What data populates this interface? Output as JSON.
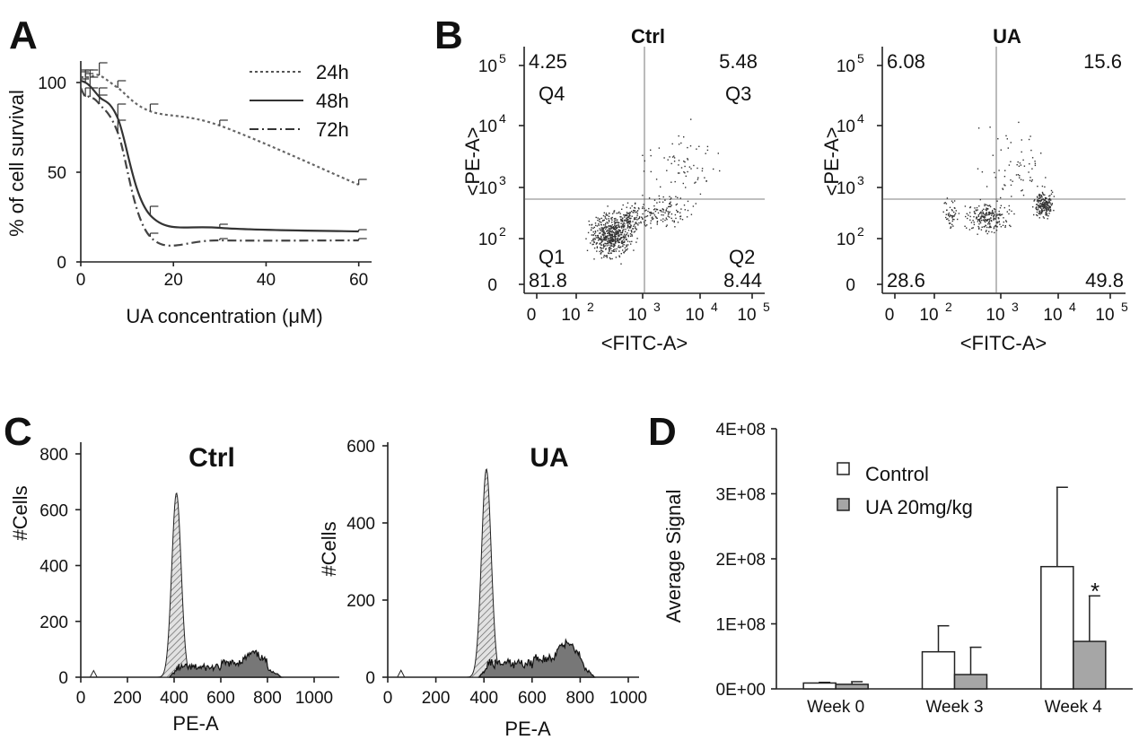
{
  "panels": {
    "A": "A",
    "B": "B",
    "C": "C",
    "D": "D"
  },
  "chart_data": [
    {
      "panel": "A",
      "type": "line",
      "xlabel": "UA concentration (μM)",
      "ylabel": "% of cell survival",
      "xlim": [
        0,
        62
      ],
      "ylim": [
        0,
        112
      ],
      "xticks": [
        "0",
        "20",
        "40",
        "60"
      ],
      "yticks": [
        "0",
        "50",
        "100"
      ],
      "legend_position": "top-right",
      "series": [
        {
          "name": "24h",
          "style": "dotted",
          "x": [
            0,
            1,
            2,
            4,
            8,
            15,
            30,
            60
          ],
          "y": [
            103,
            103,
            103,
            104,
            97,
            84,
            76,
            43
          ],
          "err": [
            4,
            4,
            4,
            7,
            4,
            4,
            3,
            3
          ]
        },
        {
          "name": "48h",
          "style": "solid",
          "x": [
            0,
            1,
            2,
            4,
            8,
            15,
            30,
            60
          ],
          "y": [
            101,
            100,
            98,
            92,
            80,
            26,
            19,
            17
          ],
          "err": [
            5,
            5,
            5,
            5,
            8,
            5,
            2,
            1
          ]
        },
        {
          "name": "72h",
          "style": "dash-dot",
          "x": [
            0,
            1,
            2,
            4,
            8,
            15,
            30,
            60
          ],
          "y": [
            97,
            92,
            92,
            88,
            72,
            14,
            12,
            12
          ],
          "err": [
            5,
            5,
            5,
            5,
            7,
            2,
            1,
            1
          ]
        }
      ]
    },
    {
      "panel": "B",
      "type": "scatter",
      "subplots": [
        {
          "title": "Ctrl",
          "xlabel": "<FITC-A>",
          "ylabel": "<PE-A>",
          "quadrants": {
            "Q4": "4.25",
            "Q3": "5.48",
            "Q1": "81.8",
            "Q2": "8.44"
          },
          "quadrant_names": [
            "Q4",
            "Q3",
            "Q1",
            "Q2"
          ]
        },
        {
          "title": "UA",
          "xlabel": "<FITC-A>",
          "ylabel": "<PE-A>",
          "quadrants": {
            "Q4": "6.08",
            "Q3": "15.6",
            "Q1": "28.6",
            "Q2": "49.8"
          },
          "quadrant_names": []
        }
      ],
      "xticks": [
        "0",
        "10",
        "10",
        "10",
        "10"
      ],
      "xtick_exp": [
        "",
        "2",
        "3",
        "4",
        "5"
      ],
      "yticks": [
        "0",
        "10",
        "10",
        "10",
        "10"
      ],
      "ytick_exp": [
        "",
        "2",
        "3",
        "4",
        "5"
      ]
    },
    {
      "panel": "C",
      "type": "area",
      "subplots": [
        {
          "title": "Ctrl",
          "xlabel": "PE-A",
          "ylabel": "#Cells",
          "ylim": [
            0,
            800
          ],
          "yticks": [
            "0",
            "200",
            "400",
            "600",
            "800"
          ],
          "peak_g1": {
            "x": 410,
            "y": 660
          },
          "g2_peak": {
            "x": 740,
            "y": 60
          }
        },
        {
          "title": "UA",
          "xlabel": "PE-A",
          "ylabel": "#Cells",
          "ylim": [
            0,
            600
          ],
          "yticks": [
            "0",
            "200",
            "400",
            "600"
          ],
          "peak_g1": {
            "x": 410,
            "y": 540
          },
          "g2_peak": {
            "x": 750,
            "y": 70
          }
        }
      ],
      "xlim": [
        0,
        1000
      ],
      "xticks": [
        "0",
        "200",
        "400",
        "600",
        "800",
        "1000"
      ]
    },
    {
      "panel": "D",
      "type": "bar",
      "ylabel": "Average Signal",
      "ylim": [
        0,
        400000000
      ],
      "yticks": [
        "0E+00",
        "1E+08",
        "2E+08",
        "3E+08",
        "4E+08"
      ],
      "categories": [
        "Week 0",
        "Week 3",
        "Week 4"
      ],
      "legend_position": "top-left",
      "series": [
        {
          "name": "Control",
          "color": "#ffffff",
          "values": [
            9000000,
            57000000,
            188000000
          ],
          "err": [
            1000000,
            40000000,
            122000000
          ]
        },
        {
          "name": "UA 20mg/kg",
          "color": "#a6a6a6",
          "values": [
            7000000,
            22000000,
            73000000
          ],
          "err": [
            4000000,
            42000000,
            70000000
          ]
        }
      ],
      "annotation": "*"
    }
  ]
}
